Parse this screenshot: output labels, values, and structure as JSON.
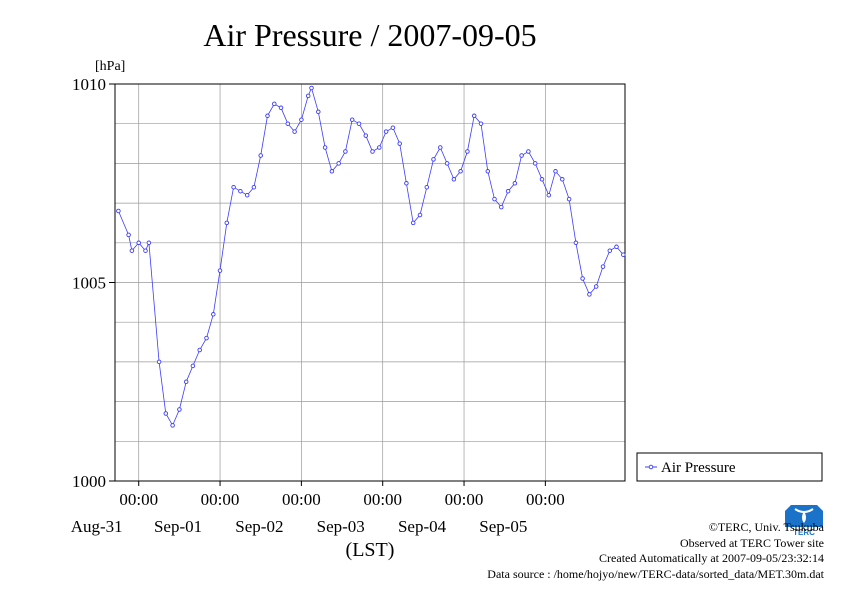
{
  "chart_data": {
    "type": "line",
    "title": "Air Pressure / 2007-09-05",
    "ylabel": "[hPa]",
    "xlabel": "(LST)",
    "ylim": [
      1000,
      1010
    ],
    "yticks": [
      1000,
      1005,
      1010
    ],
    "xlim": [
      "2007-08-30 17:00",
      "2007-09-05 23:30"
    ],
    "xticks": [
      {
        "time": "2007-08-31 00:00",
        "top": "00:00",
        "bottom": "Aug-31"
      },
      {
        "time": "2007-09-01 00:00",
        "top": "00:00",
        "bottom": "Sep-01"
      },
      {
        "time": "2007-09-02 00:00",
        "top": "00:00",
        "bottom": "Sep-02"
      },
      {
        "time": "2007-09-03 00:00",
        "top": "00:00",
        "bottom": "Sep-03"
      },
      {
        "time": "2007-09-04 00:00",
        "top": "00:00",
        "bottom": "Sep-04"
      },
      {
        "time": "2007-09-05 00:00",
        "top": "00:00",
        "bottom": "Sep-05"
      }
    ],
    "grid": true,
    "legend_position": "right",
    "series": [
      {
        "name": "Air Pressure",
        "color": "#3c3cff",
        "points": [
          [
            "2007-08-30 18:00",
            1006.8
          ],
          [
            "2007-08-30 21:00",
            1006.2
          ],
          [
            "2007-08-30 22:00",
            1005.8
          ],
          [
            "2007-08-31 00:00",
            1006.0
          ],
          [
            "2007-08-31 02:00",
            1005.8
          ],
          [
            "2007-08-31 03:00",
            1006.0
          ],
          [
            "2007-08-31 06:00",
            1003.0
          ],
          [
            "2007-08-31 08:00",
            1001.7
          ],
          [
            "2007-08-31 10:00",
            1001.4
          ],
          [
            "2007-08-31 12:00",
            1001.8
          ],
          [
            "2007-08-31 14:00",
            1002.5
          ],
          [
            "2007-08-31 16:00",
            1002.9
          ],
          [
            "2007-08-31 18:00",
            1003.3
          ],
          [
            "2007-08-31 20:00",
            1003.6
          ],
          [
            "2007-08-31 22:00",
            1004.2
          ],
          [
            "2007-09-01 00:00",
            1005.3
          ],
          [
            "2007-09-01 02:00",
            1006.5
          ],
          [
            "2007-09-01 04:00",
            1007.4
          ],
          [
            "2007-09-01 06:00",
            1007.3
          ],
          [
            "2007-09-01 08:00",
            1007.2
          ],
          [
            "2007-09-01 10:00",
            1007.4
          ],
          [
            "2007-09-01 12:00",
            1008.2
          ],
          [
            "2007-09-01 14:00",
            1009.2
          ],
          [
            "2007-09-01 16:00",
            1009.5
          ],
          [
            "2007-09-01 18:00",
            1009.4
          ],
          [
            "2007-09-01 20:00",
            1009.0
          ],
          [
            "2007-09-01 22:00",
            1008.8
          ],
          [
            "2007-09-02 00:00",
            1009.1
          ],
          [
            "2007-09-02 02:00",
            1009.7
          ],
          [
            "2007-09-02 03:00",
            1009.9
          ],
          [
            "2007-09-02 05:00",
            1009.3
          ],
          [
            "2007-09-02 07:00",
            1008.4
          ],
          [
            "2007-09-02 09:00",
            1007.8
          ],
          [
            "2007-09-02 11:00",
            1008.0
          ],
          [
            "2007-09-02 13:00",
            1008.3
          ],
          [
            "2007-09-02 15:00",
            1009.1
          ],
          [
            "2007-09-02 17:00",
            1009.0
          ],
          [
            "2007-09-02 19:00",
            1008.7
          ],
          [
            "2007-09-02 21:00",
            1008.3
          ],
          [
            "2007-09-02 23:00",
            1008.4
          ],
          [
            "2007-09-03 01:00",
            1008.8
          ],
          [
            "2007-09-03 03:00",
            1008.9
          ],
          [
            "2007-09-03 05:00",
            1008.5
          ],
          [
            "2007-09-03 07:00",
            1007.5
          ],
          [
            "2007-09-03 09:00",
            1006.5
          ],
          [
            "2007-09-03 11:00",
            1006.7
          ],
          [
            "2007-09-03 13:00",
            1007.4
          ],
          [
            "2007-09-03 15:00",
            1008.1
          ],
          [
            "2007-09-03 17:00",
            1008.4
          ],
          [
            "2007-09-03 19:00",
            1008.0
          ],
          [
            "2007-09-03 21:00",
            1007.6
          ],
          [
            "2007-09-03 23:00",
            1007.8
          ],
          [
            "2007-09-04 01:00",
            1008.3
          ],
          [
            "2007-09-04 03:00",
            1009.2
          ],
          [
            "2007-09-04 05:00",
            1009.0
          ],
          [
            "2007-09-04 07:00",
            1007.8
          ],
          [
            "2007-09-04 09:00",
            1007.1
          ],
          [
            "2007-09-04 11:00",
            1006.9
          ],
          [
            "2007-09-04 13:00",
            1007.3
          ],
          [
            "2007-09-04 15:00",
            1007.5
          ],
          [
            "2007-09-04 17:00",
            1008.2
          ],
          [
            "2007-09-04 19:00",
            1008.3
          ],
          [
            "2007-09-04 21:00",
            1008.0
          ],
          [
            "2007-09-04 23:00",
            1007.6
          ],
          [
            "2007-09-05 01:00",
            1007.2
          ],
          [
            "2007-09-05 03:00",
            1007.8
          ],
          [
            "2007-09-05 05:00",
            1007.6
          ],
          [
            "2007-09-05 07:00",
            1007.1
          ],
          [
            "2007-09-05 09:00",
            1006.0
          ],
          [
            "2007-09-05 11:00",
            1005.1
          ],
          [
            "2007-09-05 13:00",
            1004.7
          ],
          [
            "2007-09-05 15:00",
            1004.9
          ],
          [
            "2007-09-05 17:00",
            1005.4
          ],
          [
            "2007-09-05 19:00",
            1005.8
          ],
          [
            "2007-09-05 21:00",
            1005.9
          ],
          [
            "2007-09-05 23:00",
            1005.7
          ]
        ]
      }
    ]
  },
  "credits": {
    "copyright": "©TERC, Univ. Tsukuba",
    "observed": "Observed at TERC Tower site",
    "created": "Created Automatically at 2007-09-05/23:32:14",
    "source": "Data source : /home/hojyo/new/TERC-data/sorted_data/MET.30m.dat"
  },
  "logo": {
    "text": "TERC",
    "color": "#1a73c9"
  }
}
